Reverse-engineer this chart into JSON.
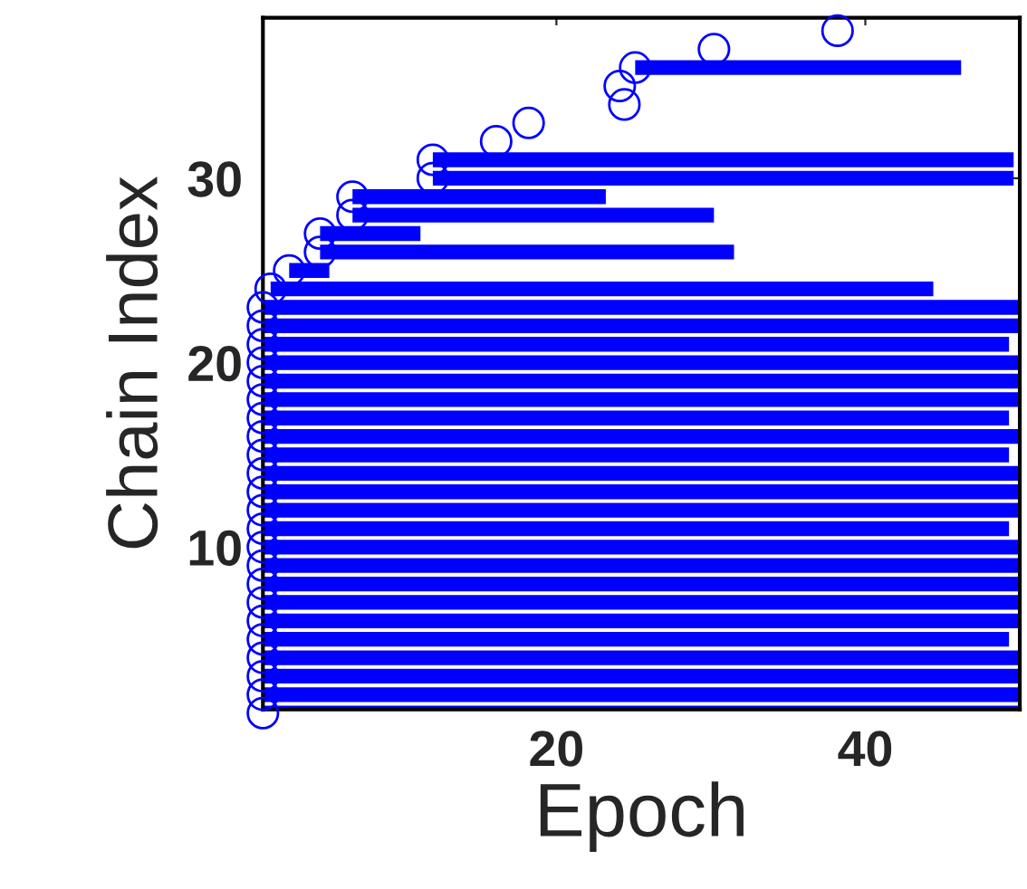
{
  "chart_data": {
    "type": "bar",
    "orientation": "horizontal",
    "xlabel": "Epoch",
    "ylabel": "Chain Index",
    "x": [
      1,
      2,
      3,
      4,
      5,
      6,
      7,
      8,
      9,
      10,
      11,
      12,
      13,
      14,
      15,
      16,
      17,
      18,
      19,
      20,
      21,
      22,
      23,
      24,
      25,
      26,
      27,
      28,
      29,
      30,
      31,
      32,
      33,
      34,
      35,
      36,
      37,
      38
    ],
    "series": [
      {
        "color": "#0000ff",
        "base": [
          1,
          1,
          1,
          1,
          1,
          1,
          1,
          1,
          1,
          1,
          1,
          1,
          1,
          1,
          1,
          1,
          1,
          1,
          1,
          1,
          1,
          1,
          1,
          1.5,
          2.7,
          4.7,
          4.7,
          6.8,
          6.8,
          12,
          12,
          null,
          null,
          null,
          null,
          25.1,
          null,
          null
        ],
        "values": [
          49,
          49,
          49,
          49,
          48.3,
          49,
          49,
          49,
          49,
          49,
          48.3,
          49,
          49,
          49,
          48.3,
          49,
          48.3,
          49,
          49,
          49,
          48.3,
          49,
          49,
          42.9,
          2.6,
          26.8,
          6.5,
          23.4,
          16.4,
          37.6,
          37.6,
          null,
          null,
          null,
          null,
          21.1,
          null,
          null
        ]
      },
      {
        "type": "scatter",
        "marker": "circle",
        "color": "#0000ff",
        "values": [
          1,
          1,
          1,
          1,
          1,
          1,
          1,
          1,
          1,
          1,
          1,
          1,
          1,
          1,
          1,
          1,
          1,
          1,
          1,
          1,
          1,
          1,
          1,
          1.5,
          2.7,
          4.7,
          4.7,
          6.8,
          6.8,
          12,
          12,
          16.1,
          18.2,
          24.4,
          24.1,
          25.1,
          30.2,
          38.2
        ]
      }
    ],
    "xlim": [
      1,
      50
    ],
    "xticks": [
      20,
      40
    ],
    "ylim": [
      1.2,
      38.7
    ],
    "yticks": [
      10,
      20,
      30
    ],
    "grid": false,
    "legend": false
  }
}
